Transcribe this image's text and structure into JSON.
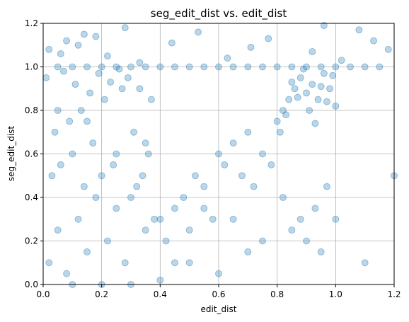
{
  "chart_data": {
    "type": "scatter",
    "title": "seg_edit_dist vs. edit_dist",
    "xlabel": "edit_dist",
    "ylabel": "seg_edit_dist",
    "xlim": [
      0,
      1.2
    ],
    "ylim": [
      0,
      1.2
    ],
    "xticks": [
      "0.0",
      "0.2",
      "0.4",
      "0.6",
      "0.8",
      "1.0",
      "1.2"
    ],
    "yticks": [
      "0.0",
      "0.2",
      "0.4",
      "0.6",
      "0.8",
      "1.0",
      "1.2"
    ],
    "grid": true,
    "marker_color": "#1f77b4",
    "marker_alpha": 0.3,
    "series": [
      {
        "values_description_free": true,
        "x": [
          0.02,
          0.05,
          0.08,
          0.12,
          0.15,
          0.18,
          0.22,
          0.25,
          0.28,
          0.32,
          0.35,
          0.38,
          0.03,
          0.06,
          0.1,
          0.14,
          0.2,
          0.24,
          0.3,
          0.34,
          0.04,
          0.09,
          0.13,
          0.17,
          0.21,
          0.27,
          0.31,
          0.36,
          0.01,
          0.07,
          0.11,
          0.16,
          0.19,
          0.23,
          0.26,
          0.29,
          0.33,
          0.37,
          0.4,
          0.42,
          0.45,
          0.48,
          0.5,
          0.52,
          0.55,
          0.58,
          0.6,
          0.62,
          0.65,
          0.68,
          0.7,
          0.72,
          0.75,
          0.78,
          0.8,
          0.82,
          0.84,
          0.86,
          0.88,
          0.9,
          0.92,
          0.94,
          0.96,
          0.98,
          1.0,
          0.81,
          0.83,
          0.85,
          0.87,
          0.89,
          0.91,
          0.93,
          0.95,
          0.97,
          0.99,
          0.05,
          0.1,
          0.15,
          0.2,
          0.25,
          0.3,
          0.35,
          0.4,
          0.45,
          0.5,
          0.55,
          0.6,
          0.65,
          0.7,
          0.75,
          0.8,
          0.85,
          0.9,
          0.95,
          1.0,
          1.05,
          1.1,
          1.15,
          0.02,
          0.08,
          0.14,
          0.22,
          0.28,
          0.12,
          0.18,
          0.06,
          0.33,
          0.44,
          0.53,
          0.63,
          0.71,
          0.77,
          0.92,
          0.96,
          1.02,
          1.08,
          1.13,
          1.18,
          0.5,
          0.6,
          0.7,
          0.4,
          0.3,
          0.2,
          0.1,
          0.9,
          1.0,
          0.85,
          0.95,
          0.45,
          0.55,
          0.65,
          0.75,
          0.35,
          0.25,
          0.15,
          0.05,
          1.1,
          1.2,
          0.82,
          0.88,
          0.93,
          0.97
        ],
        "y": [
          0.1,
          0.25,
          0.05,
          0.3,
          0.15,
          0.4,
          0.2,
          0.35,
          0.1,
          0.45,
          0.25,
          0.3,
          0.5,
          0.55,
          0.6,
          0.45,
          0.5,
          0.55,
          0.4,
          0.5,
          0.7,
          0.75,
          0.8,
          0.65,
          0.85,
          0.9,
          0.7,
          0.6,
          0.95,
          0.98,
          0.92,
          0.88,
          0.97,
          0.93,
          0.99,
          0.95,
          0.9,
          0.85,
          0.3,
          0.2,
          0.35,
          0.4,
          0.25,
          0.5,
          0.45,
          0.3,
          0.6,
          0.55,
          0.65,
          0.5,
          0.7,
          0.45,
          0.6,
          0.55,
          0.75,
          0.8,
          0.85,
          0.9,
          0.95,
          0.88,
          0.92,
          0.85,
          0.97,
          0.9,
          0.82,
          0.7,
          0.78,
          0.93,
          0.86,
          0.99,
          0.8,
          0.74,
          0.91,
          0.84,
          0.96,
          1.0,
          1.0,
          1.0,
          1.0,
          1.0,
          1.0,
          1.0,
          1.0,
          1.0,
          1.0,
          1.0,
          1.0,
          1.0,
          1.0,
          1.0,
          1.0,
          1.0,
          1.0,
          1.0,
          1.0,
          1.0,
          1.0,
          1.0,
          1.08,
          1.12,
          1.15,
          1.05,
          1.18,
          1.1,
          1.14,
          1.06,
          1.02,
          1.11,
          1.16,
          1.04,
          1.09,
          1.13,
          1.07,
          1.19,
          1.03,
          1.17,
          1.12,
          1.08,
          0.1,
          0.05,
          0.15,
          0.02,
          0.0,
          0.0,
          0.0,
          0.2,
          0.3,
          0.25,
          0.15,
          0.1,
          0.35,
          0.3,
          0.2,
          0.65,
          0.6,
          0.75,
          0.8,
          0.1,
          0.5,
          0.4,
          0.3,
          0.35,
          0.45
        ]
      }
    ]
  }
}
